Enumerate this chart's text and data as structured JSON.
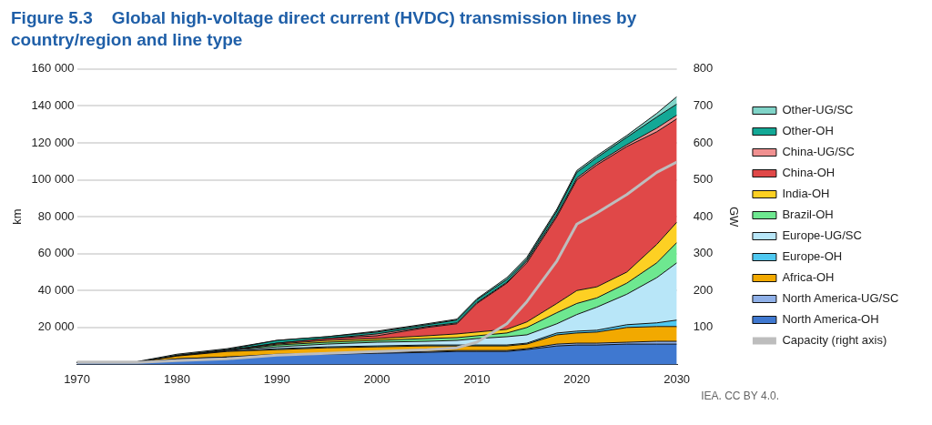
{
  "chart_data": {
    "type": "area",
    "title": "Figure 5.3    Global high-voltage direct current (HVDC) transmission lines by country/region and line type",
    "ylabel": "km",
    "y2label": "GW",
    "stacked": true,
    "grid": "y",
    "legend": "right",
    "marker": "none",
    "x": [
      1970,
      1976,
      1980,
      1985,
      1990,
      1995,
      2000,
      2005,
      2008,
      2010,
      2013,
      2015,
      2018,
      2020,
      2022,
      2025,
      2028,
      2030
    ],
    "xlim": [
      1970,
      2030
    ],
    "xticks": [
      1970,
      1980,
      1990,
      2000,
      2010,
      2020,
      2030
    ],
    "ylim": [
      0,
      160000
    ],
    "yticks": [
      {
        "value": 20000,
        "label": "20 000"
      },
      {
        "value": 40000,
        "label": "40 000"
      },
      {
        "value": 60000,
        "label": "60 000"
      },
      {
        "value": 80000,
        "label": "80 000"
      },
      {
        "value": 100000,
        "label": "100 000"
      },
      {
        "value": 120000,
        "label": "120 000"
      },
      {
        "value": 140000,
        "label": "140 000"
      },
      {
        "value": 160000,
        "label": "160 000"
      }
    ],
    "y2lim": [
      0,
      800
    ],
    "y2ticks": [
      100,
      200,
      300,
      400,
      500,
      600,
      700,
      800
    ],
    "series": [
      {
        "name": "North America-OH",
        "color": "#3f78d0",
        "values": [
          1000,
          1000,
          3000,
          4000,
          5000,
          5500,
          6000,
          6500,
          7000,
          7000,
          7000,
          8000,
          10000,
          10500,
          10500,
          11000,
          11000,
          11000
        ]
      },
      {
        "name": "North America-UG/SC",
        "color": "#8fb0e8",
        "values": [
          0,
          0,
          0,
          0,
          500,
          500,
          500,
          500,
          500,
          500,
          500,
          500,
          1000,
          1000,
          1000,
          1000,
          1500,
          1500
        ]
      },
      {
        "name": "Africa-OH",
        "color": "#f2a900",
        "values": [
          0,
          0,
          1500,
          3000,
          2500,
          3000,
          3000,
          3000,
          2500,
          2500,
          2500,
          2500,
          5000,
          5500,
          6000,
          8000,
          8000,
          8000
        ]
      },
      {
        "name": "Europe-OH",
        "color": "#4fc8f0",
        "values": [
          0,
          0,
          0,
          0,
          500,
          500,
          500,
          500,
          500,
          500,
          500,
          500,
          1000,
          1000,
          1000,
          1500,
          2000,
          3500
        ]
      },
      {
        "name": "Europe-UG/SC",
        "color": "#b8e6f8",
        "values": [
          0,
          0,
          0,
          500,
          1000,
          1500,
          2000,
          2000,
          2500,
          3500,
          4500,
          4500,
          5000,
          9000,
          12500,
          16500,
          24500,
          31000
        ]
      },
      {
        "name": "Brazil-OH",
        "color": "#6ee890",
        "values": [
          0,
          0,
          0,
          0,
          1000,
          1000,
          1000,
          1500,
          1500,
          1500,
          2000,
          4000,
          6000,
          6000,
          5000,
          6000,
          8000,
          11000
        ]
      },
      {
        "name": "India-OH",
        "color": "#fdd023",
        "values": [
          0,
          0,
          0,
          0,
          500,
          1000,
          1000,
          1500,
          2000,
          2000,
          2000,
          3000,
          5000,
          7000,
          6000,
          6000,
          10000,
          11000
        ]
      },
      {
        "name": "China-OH",
        "color": "#e04848",
        "values": [
          0,
          0,
          0,
          0,
          500,
          1000,
          1500,
          4500,
          5500,
          15500,
          25000,
          32000,
          47000,
          60000,
          66000,
          68000,
          61000,
          56000
        ]
      },
      {
        "name": "China-UG/SC",
        "color": "#f09090",
        "values": [
          0,
          0,
          0,
          0,
          0,
          0,
          1000,
          500,
          500,
          500,
          500,
          1000,
          1000,
          1000,
          1000,
          1000,
          2000,
          2000
        ]
      },
      {
        "name": "Other-OH",
        "color": "#13a896",
        "values": [
          0,
          0,
          500,
          500,
          1500,
          1000,
          1000,
          1000,
          1500,
          1500,
          1500,
          1000,
          2000,
          3000,
          3000,
          4000,
          6000,
          6000
        ]
      },
      {
        "name": "Other-UG/SC",
        "color": "#80d4c8",
        "values": [
          500,
          500,
          500,
          500,
          0,
          0,
          500,
          500,
          500,
          500,
          1000,
          1000,
          1000,
          1000,
          1000,
          1000,
          2000,
          4000
        ]
      },
      {
        "name": "Capacity (right axis)",
        "type": "line",
        "axis": "y2",
        "color": "#bdbdbd",
        "values": [
          5,
          5,
          10,
          15,
          25,
          30,
          35,
          40,
          45,
          60,
          110,
          170,
          280,
          380,
          410,
          460,
          520,
          548
        ]
      }
    ],
    "annotations": [
      "IEA. CC BY 4.0."
    ]
  }
}
